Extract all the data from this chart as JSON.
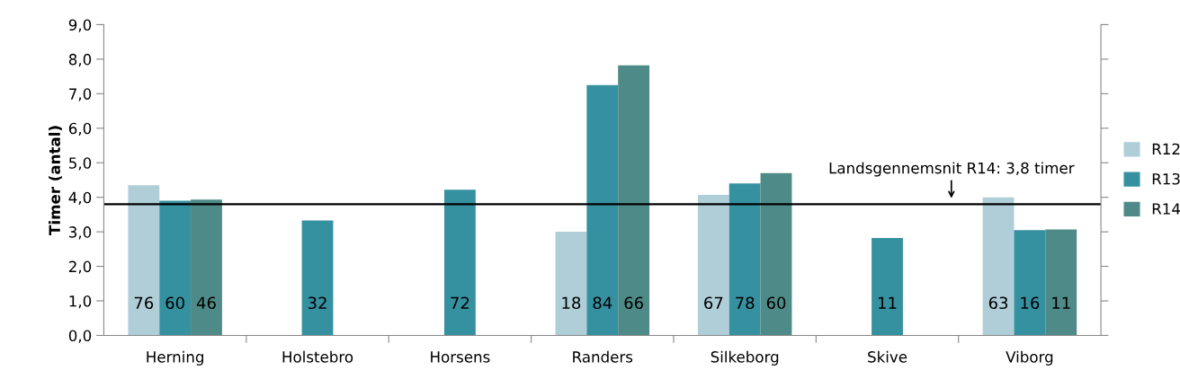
{
  "chart_data": {
    "type": "bar",
    "ylabel": "Timer (antal)",
    "categories": [
      "Herning",
      "Holstebro",
      "Horsens",
      "Randers",
      "Silkeborg",
      "Skive",
      "Viborg"
    ],
    "series": [
      {
        "name": "R12",
        "color": "#b0ced8",
        "values": [
          4.35,
          null,
          null,
          3.0,
          4.07,
          null,
          4.0
        ]
      },
      {
        "name": "R13",
        "color": "#3591a0",
        "values": [
          3.9,
          3.33,
          4.22,
          7.25,
          4.4,
          2.82,
          3.05
        ]
      },
      {
        "name": "R14",
        "color": "#4e8a87",
        "values": [
          3.93,
          null,
          null,
          7.82,
          4.7,
          null,
          3.07
        ]
      }
    ],
    "annotations": [
      "76",
      "60",
      "46",
      "32",
      "72",
      "18",
      "84",
      "66",
      "67",
      "78",
      "60",
      "11",
      "63",
      "16",
      "11"
    ],
    "ylim": [
      0,
      9
    ],
    "yticks": [
      {
        "value": 0,
        "label": "0,0"
      },
      {
        "value": 1,
        "label": "1,0"
      },
      {
        "value": 2,
        "label": "2,0"
      },
      {
        "value": 3,
        "label": "3,0"
      },
      {
        "value": 4,
        "label": "4,0"
      },
      {
        "value": 5,
        "label": "5,0"
      },
      {
        "value": 6,
        "label": "6,0"
      },
      {
        "value": 7,
        "label": "7,0"
      },
      {
        "value": 8,
        "label": "8,0"
      },
      {
        "value": 9,
        "label": "9,0"
      }
    ],
    "ref_lines": [
      {
        "axis": "y",
        "value": 3.8,
        "label": "Landsgennemsnit R14: 3,8 timer",
        "color": "#000000",
        "line_style": "solid"
      }
    ],
    "legend": "right",
    "grid": false
  }
}
